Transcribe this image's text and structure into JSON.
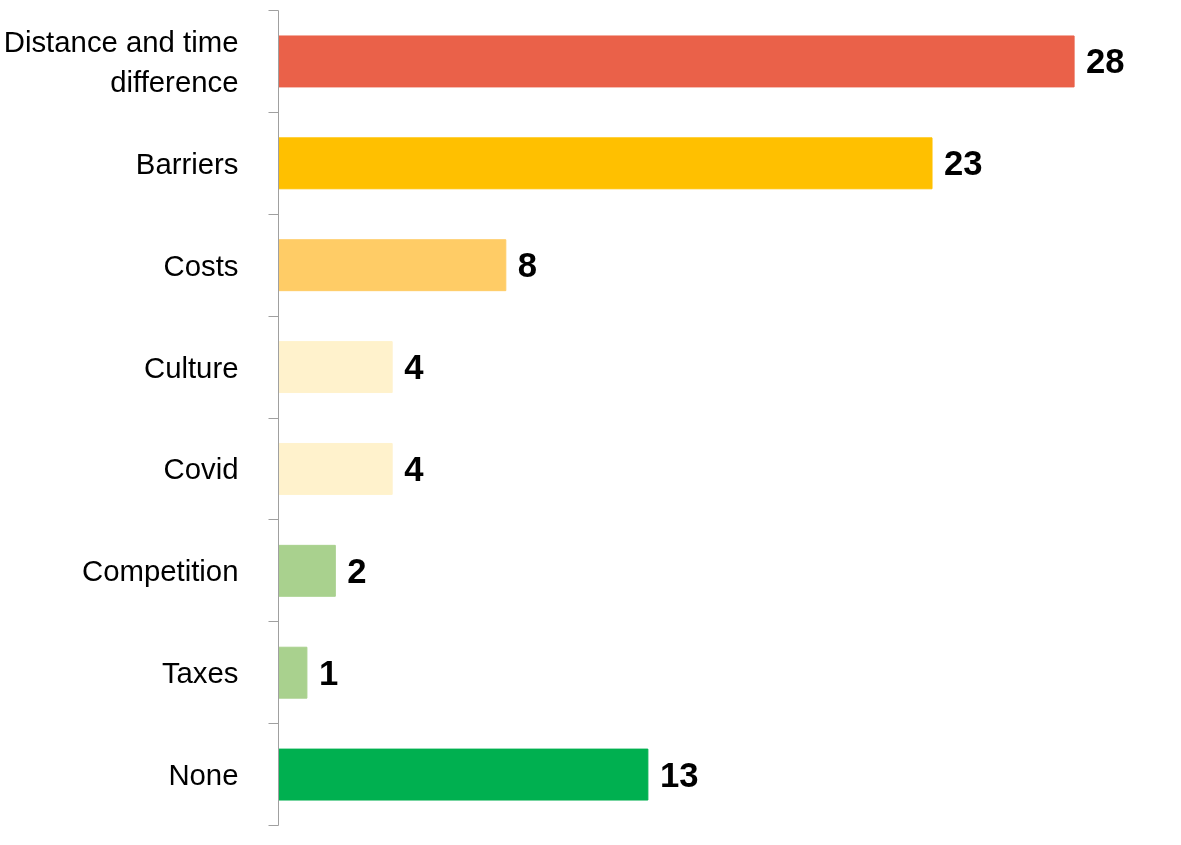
{
  "chart_data": {
    "type": "bar",
    "orientation": "horizontal",
    "categories": [
      "Distance and time difference",
      "Barriers",
      "Costs",
      "Culture",
      "Covid",
      "Competition",
      "Taxes",
      "None"
    ],
    "values": [
      28,
      23,
      8,
      4,
      4,
      2,
      1,
      13
    ],
    "colors": [
      "#ea6149",
      "#ffc000",
      "#ffcc66",
      "#fff2cc",
      "#fff2cc",
      "#a9d18e",
      "#a9d18e",
      "#00b050"
    ],
    "data_labels": true
  }
}
